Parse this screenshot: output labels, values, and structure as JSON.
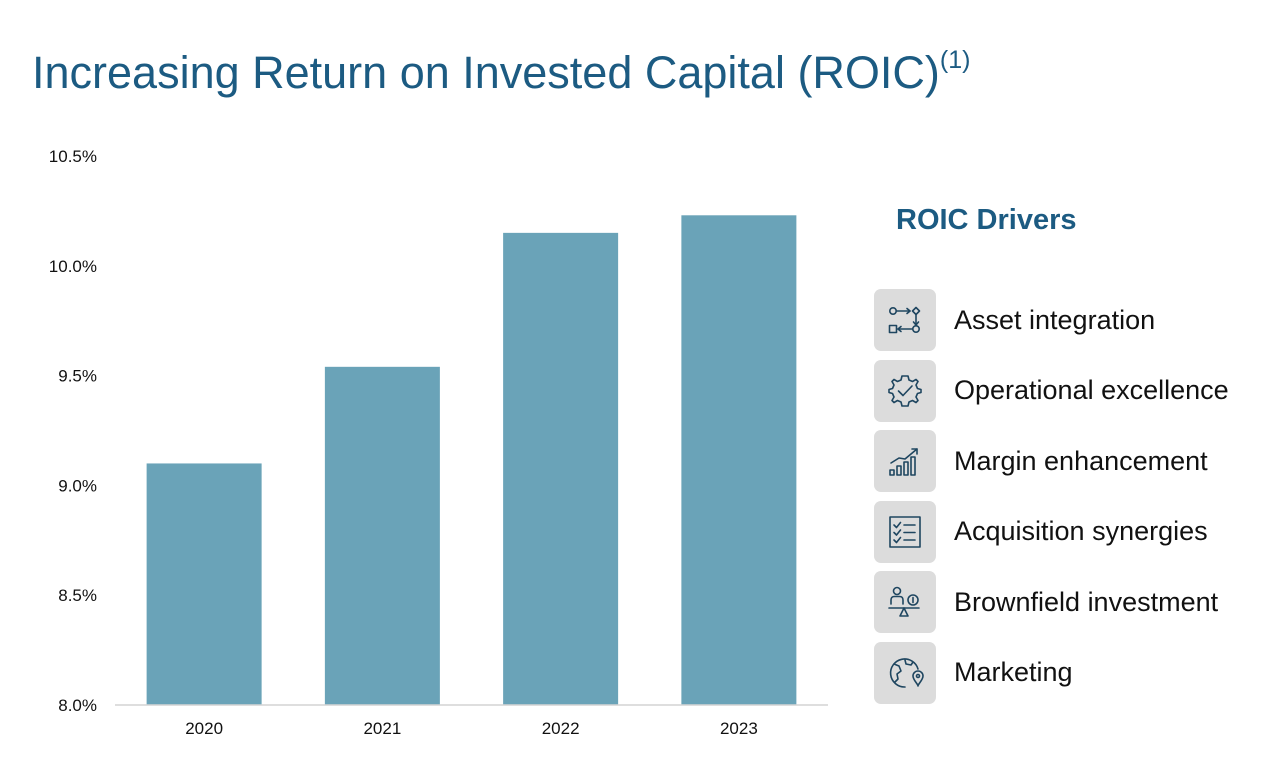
{
  "page": {
    "title": "Increasing Return on Invested Capital (ROIC)",
    "title_footnote": "(1)"
  },
  "chart_data": {
    "type": "bar",
    "categories": [
      "2020",
      "2021",
      "2022",
      "2023"
    ],
    "values": [
      9.1,
      9.54,
      10.15,
      10.23
    ],
    "value_unit": "%",
    "ylim": [
      8.0,
      10.5
    ],
    "yticks": [
      "8.0%",
      "8.5%",
      "9.0%",
      "9.5%",
      "10.0%",
      "10.5%"
    ],
    "ytick_values": [
      8.0,
      8.5,
      9.0,
      9.5,
      10.0,
      10.5
    ],
    "grid": false,
    "bar_color": "#6aa3b8"
  },
  "drivers": {
    "title": "ROIC Drivers",
    "items": [
      {
        "label": "Asset integration",
        "icon": "workflow-icon"
      },
      {
        "label": "Operational excellence",
        "icon": "gear-check-icon"
      },
      {
        "label": "Margin enhancement",
        "icon": "growth-chart-icon"
      },
      {
        "label": "Acquisition synergies",
        "icon": "checklist-icon"
      },
      {
        "label": "Brownfield investment",
        "icon": "investor-scale-icon"
      },
      {
        "label": "Marketing",
        "icon": "globe-pin-icon"
      }
    ]
  },
  "colors": {
    "title": "#1c5b82",
    "bars": "#6aa3b8",
    "icon_bg": "#dcdcdc",
    "icon_stroke": "#1f4660"
  }
}
